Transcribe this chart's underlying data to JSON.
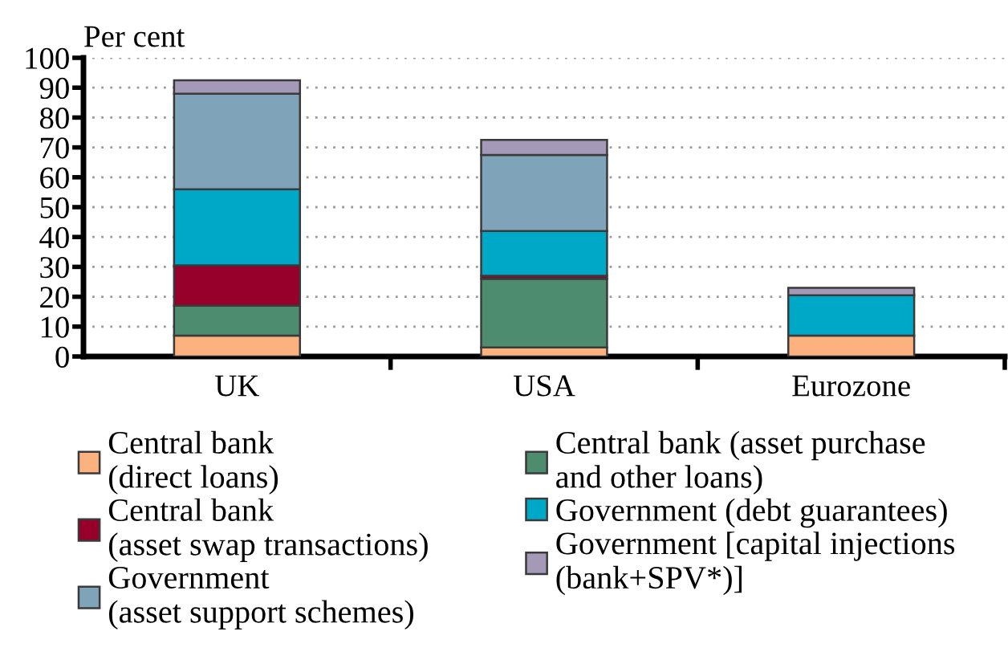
{
  "chart_data": {
    "type": "bar",
    "stacked": true,
    "categories": [
      "UK",
      "USA",
      "Eurozone"
    ],
    "ylabel": "Per cent",
    "ylim": [
      0,
      100
    ],
    "yticks": [
      0,
      10,
      20,
      30,
      40,
      50,
      60,
      70,
      80,
      90,
      100
    ],
    "grid": "y",
    "legend": "bottom",
    "series": [
      {
        "name": "Central bank\n(direct loans)",
        "color": "#fbb27e",
        "values": [
          7,
          3,
          7
        ]
      },
      {
        "name": "Central bank (asset purchase\nand other loans)",
        "color": "#4e8c70",
        "values": [
          10,
          23,
          null
        ]
      },
      {
        "name": "Central bank\n(asset swap transactions)",
        "color": "#96002a",
        "values": [
          13.5,
          1,
          null
        ]
      },
      {
        "name": "Government (debt guarantees)",
        "color": "#00a8c8",
        "values": [
          25.5,
          15,
          13.5
        ]
      },
      {
        "name": "Government\n(asset support schemes)",
        "color": "#7fa3b8",
        "values": [
          32,
          25.5,
          null
        ]
      },
      {
        "name": "Government [capital injections\n(bank+SPV*)]",
        "color": "#a49ab8",
        "values": [
          4.5,
          5,
          2.5
        ]
      }
    ]
  }
}
